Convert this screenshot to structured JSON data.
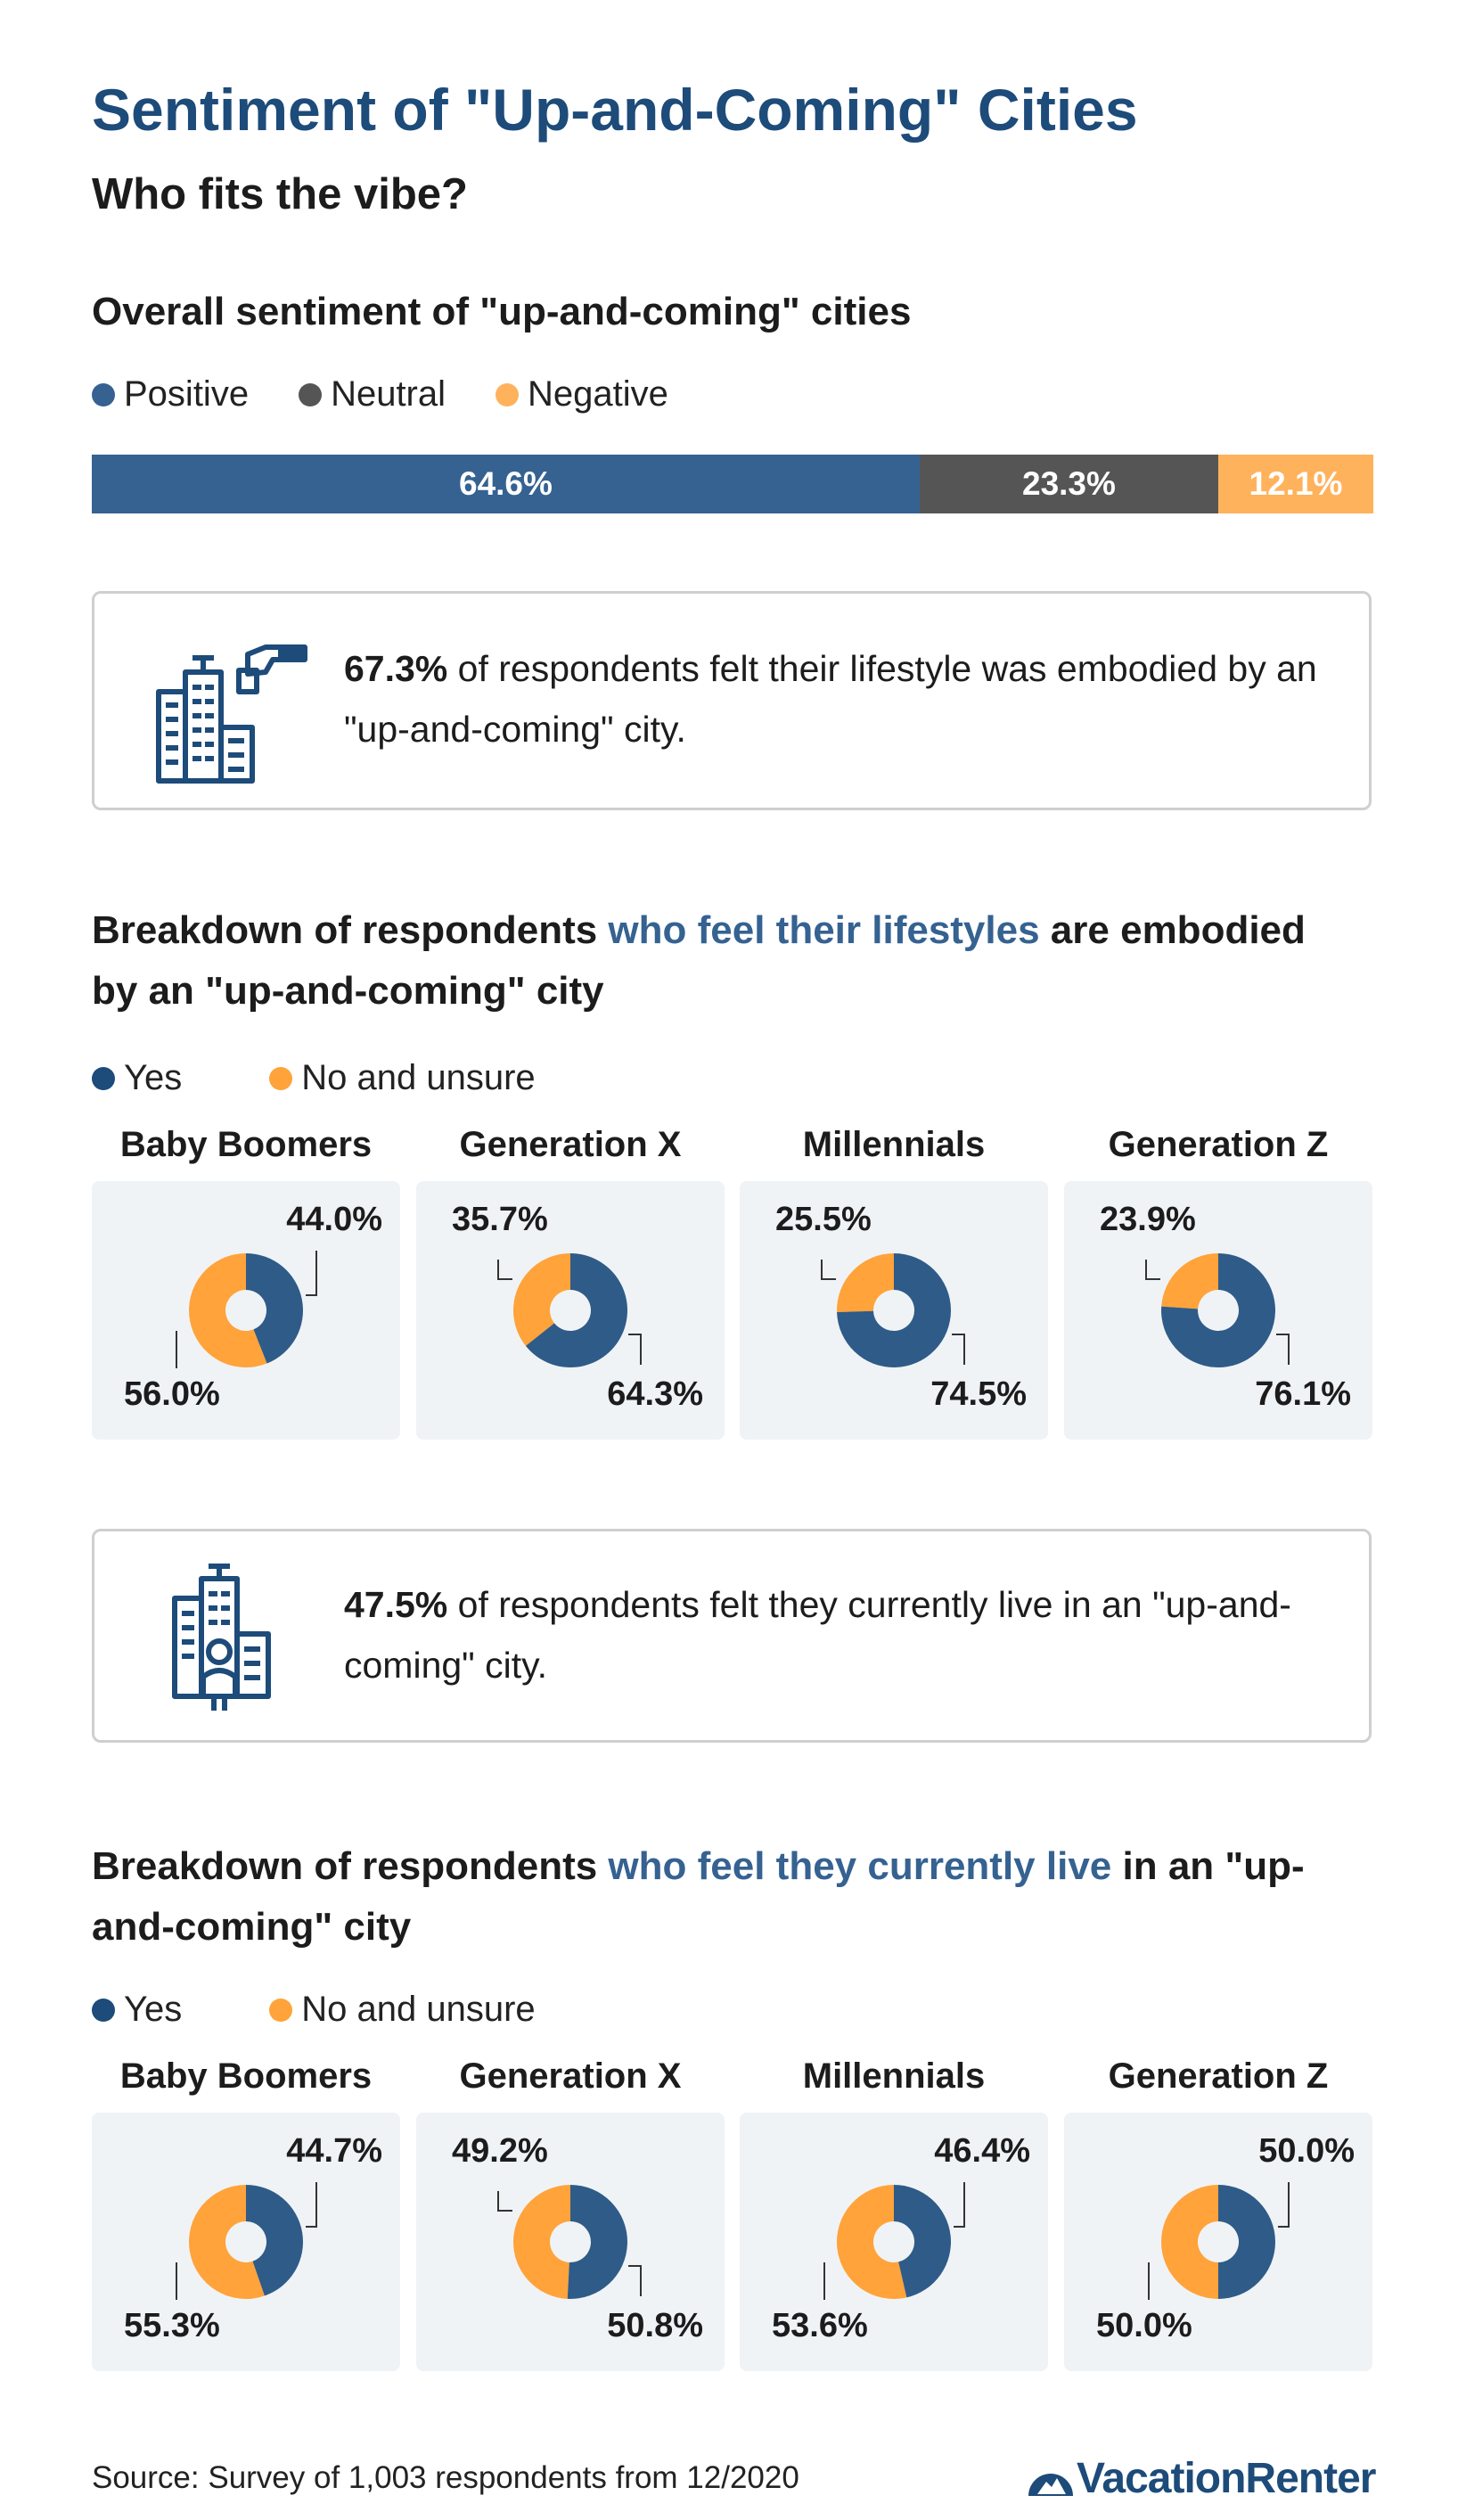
{
  "header": {
    "title": "Sentiment of \"Up-and-Coming\" Cities",
    "subtitle": "Who fits the vibe?"
  },
  "colors": {
    "positive": "#356291",
    "neutral": "#555555",
    "negative": "#ffb25c",
    "yes": "#2f5b88",
    "no": "#ffa33a",
    "title_blue": "#1d4b7a"
  },
  "overall": {
    "heading": "Overall sentiment of \"up-and-coming\" cities",
    "legend": [
      "Positive",
      "Neutral",
      "Negative"
    ]
  },
  "callout1": {
    "stat": "67.3%",
    "text": " of respondents felt their lifestyle was embodied by an \"up-and-coming\" city.",
    "icon": "city-buildings-hand-icon"
  },
  "section2": {
    "heading_pre": "Breakdown of respondents ",
    "heading_hl": "who feel their lifestyles",
    "heading_post": " are embodied by an \"up-and-coming\" city",
    "legend": [
      "Yes",
      "No and unsure"
    ]
  },
  "callout2": {
    "stat": "47.5%",
    "text": " of respondents felt they currently live in an \"up-and-coming\" city.",
    "icon": "city-buildings-person-icon"
  },
  "section3": {
    "heading_pre": "Breakdown of respondents ",
    "heading_hl": "who feel they currently live",
    "heading_post": " in an \"up-and-coming\" city",
    "legend": [
      "Yes",
      "No and unsure"
    ]
  },
  "footer": {
    "source": "Source: Survey of 1,003 respondents from 12/2020",
    "brand": "VacationRenter"
  },
  "chart_data": [
    {
      "type": "bar",
      "title": "Overall sentiment of \"up-and-coming\" cities",
      "categories": [
        "Positive",
        "Neutral",
        "Negative"
      ],
      "values": [
        64.6,
        23.3,
        12.1
      ],
      "labels": [
        "64.6%",
        "23.3%",
        "12.1%"
      ],
      "stacked": true,
      "orientation": "horizontal"
    },
    {
      "type": "pie",
      "title": "Breakdown of respondents who feel their lifestyles are embodied by an \"up-and-coming\" city",
      "groups": [
        {
          "name": "Baby Boomers",
          "yes": 44.0,
          "no": 56.0,
          "yes_label": "44.0%",
          "no_label": "56.0%"
        },
        {
          "name": "Generation X",
          "yes": 64.3,
          "no": 35.7,
          "yes_label": "64.3%",
          "no_label": "35.7%"
        },
        {
          "name": "Millennials",
          "yes": 74.5,
          "no": 25.5,
          "yes_label": "74.5%",
          "no_label": "25.5%"
        },
        {
          "name": "Generation Z",
          "yes": 76.1,
          "no": 23.9,
          "yes_label": "76.1%",
          "no_label": "23.9%"
        }
      ]
    },
    {
      "type": "pie",
      "title": "Breakdown of respondents who feel they currently live in an \"up-and-coming\" city",
      "groups": [
        {
          "name": "Baby Boomers",
          "yes": 44.7,
          "no": 55.3,
          "yes_label": "44.7%",
          "no_label": "55.3%"
        },
        {
          "name": "Generation X",
          "yes": 50.8,
          "no": 49.2,
          "yes_label": "50.8%",
          "no_label": "49.2%"
        },
        {
          "name": "Millennials",
          "yes": 46.4,
          "no": 53.6,
          "yes_label": "46.4%",
          "no_label": "53.6%"
        },
        {
          "name": "Generation Z",
          "yes": 50.0,
          "no": 50.0,
          "yes_label": "50.0%",
          "no_label": "50.0%"
        }
      ]
    }
  ]
}
